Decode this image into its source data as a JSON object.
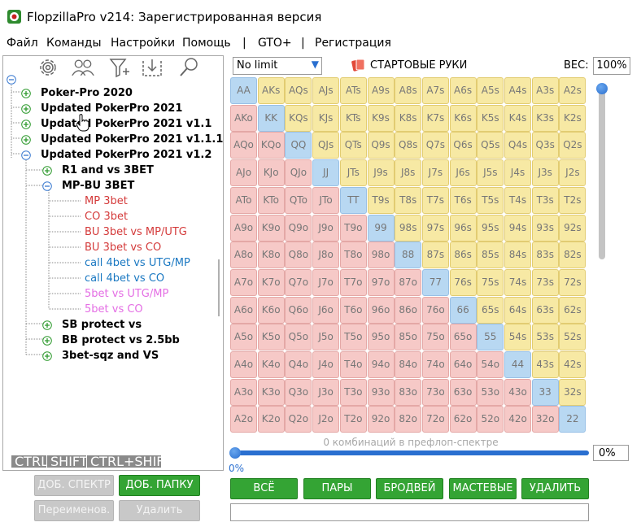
{
  "window": {
    "title": "FlopzillaPro v214: Зарегистрированная версия"
  },
  "menu": [
    "Файл",
    "Команды",
    "Настройки",
    "Помощь",
    "|",
    "GTO+",
    "|",
    "Регистрация"
  ],
  "toolbar_icons": [
    "gear-icon",
    "users-icon",
    "filter-icon",
    "import-icon",
    "search-icon"
  ],
  "tree": {
    "items": [
      {
        "label": "Poker-Pro 2020",
        "color": "#000000"
      },
      {
        "label": "Updated PokerPro 2021",
        "color": "#000000"
      },
      {
        "label": "Updated PokerPro 2021 v1.1",
        "color": "#000000"
      },
      {
        "label": "Updated PokerPro 2021 v1.1.1",
        "color": "#000000"
      },
      {
        "label": "Updated PokerPro 2021 v1.2",
        "color": "#000000"
      },
      {
        "label": "R1 and vs 3BET",
        "color": "#000000"
      },
      {
        "label": "MP-BU 3BET",
        "color": "#000000"
      },
      {
        "label": "MP 3bet",
        "color": "#d43a3a"
      },
      {
        "label": "CO 3bet",
        "color": "#d43a3a"
      },
      {
        "label": "BU 3bet vs MP/UTG",
        "color": "#d43a3a"
      },
      {
        "label": "BU 3bet vs CO",
        "color": "#d43a3a"
      },
      {
        "label": "call 4bet vs UTG/MP",
        "color": "#1a78c2"
      },
      {
        "label": "call 4bet vs CO",
        "color": "#1a78c2"
      },
      {
        "label": "5bet vs UTG/MP",
        "color": "#e46ee4"
      },
      {
        "label": "5bet vs CO",
        "color": "#e46ee4"
      },
      {
        "label": "SB protect vs",
        "color": "#000000"
      },
      {
        "label": "BB protect vs 2.5bb",
        "color": "#000000"
      },
      {
        "label": "3bet-sqz and VS",
        "color": "#000000"
      }
    ]
  },
  "modifier_tabs": [
    "CTRL",
    "SHIFT",
    "CTRL+SHIFT"
  ],
  "folder_buttons": {
    "add_spectrum": "ДОБ. СПЕКТР",
    "add_folder": "ДОБ. ПАПКУ",
    "rename": "Переименов.",
    "delete": "Удалить"
  },
  "range_header": {
    "limit_select": "No limit",
    "section_label": "СТАРТОВЫЕ РУКИ",
    "weight_label": "ВЕС:",
    "weight_value": "100%"
  },
  "hand_matrix": {
    "ranks": [
      "A",
      "K",
      "Q",
      "J",
      "T",
      "9",
      "8",
      "7",
      "6",
      "5",
      "4",
      "3",
      "2"
    ]
  },
  "slider": {
    "combos_label": "0 комбинаций в префлоп-спектре",
    "left_value": "0%",
    "right_value": "0%"
  },
  "action_buttons": [
    "ВСЁ",
    "ПАРЫ",
    "БРОДВЕЙ",
    "МАСТЕВЫЕ",
    "УДАЛИТЬ"
  ],
  "colors": {
    "pair": "#b8d8f2",
    "suited": "#f7e9a4",
    "offsuit": "#f6c9c7",
    "green_button": "#34a434",
    "accent_blue": "#2a6fd0"
  }
}
